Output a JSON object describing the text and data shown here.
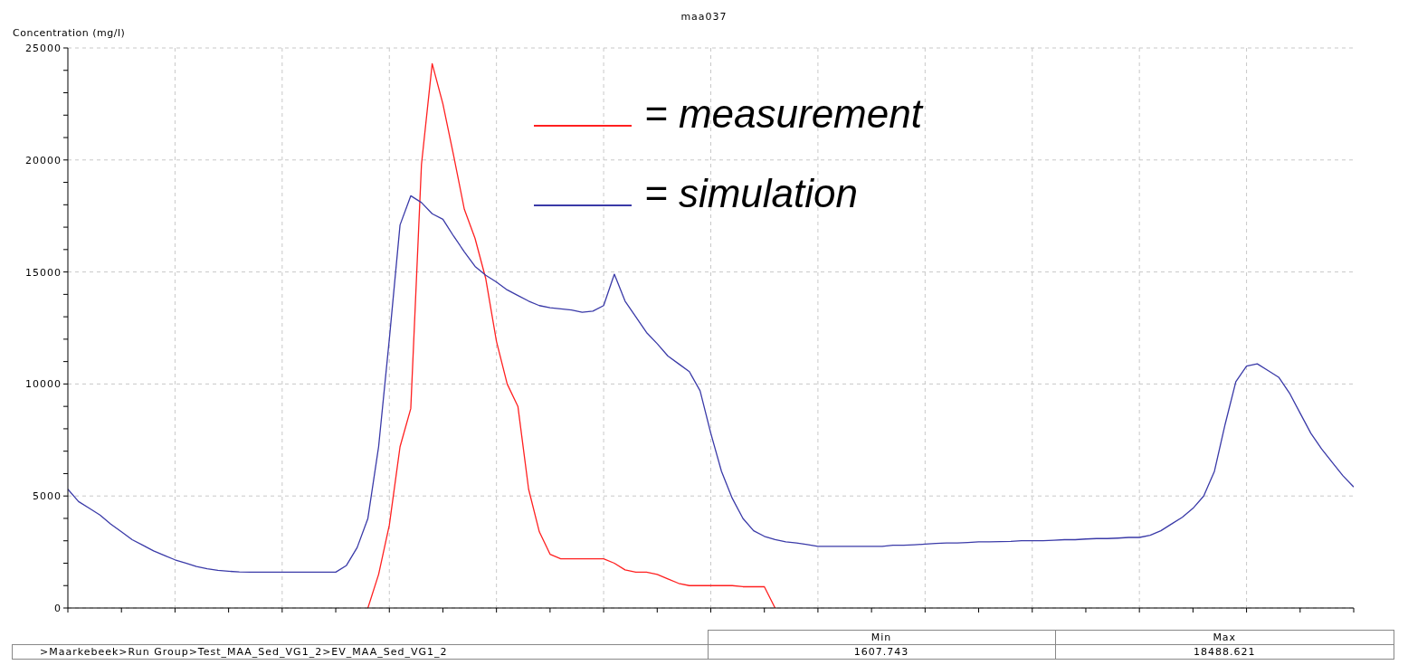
{
  "chart_data": {
    "type": "line",
    "title": "maa037",
    "ylabel": "Concentration (mg/l)",
    "categories": [
      null,
      null,
      null,
      null,
      null,
      null,
      null,
      null,
      null,
      null,
      null,
      null,
      null,
      null,
      null,
      null,
      null,
      null,
      null,
      null,
      null,
      null,
      null,
      null,
      null,
      null,
      null,
      null,
      null,
      null,
      null,
      null,
      null,
      null,
      null,
      null,
      null,
      null,
      null,
      null,
      null,
      null,
      null,
      null,
      null,
      null,
      null,
      null,
      null,
      null,
      null,
      null,
      null,
      null,
      null,
      null,
      null,
      null,
      null,
      null,
      null,
      null,
      null,
      null,
      null,
      null,
      null,
      null,
      null,
      null,
      null,
      null,
      null,
      null,
      null,
      null,
      null,
      null,
      null,
      null,
      null,
      null,
      null,
      null,
      null,
      null,
      null,
      null,
      null,
      null,
      null,
      null,
      null,
      null,
      null,
      null,
      null,
      null,
      null,
      null,
      null,
      null,
      null,
      null,
      null,
      null,
      null,
      null,
      null,
      null,
      null,
      null,
      null,
      null,
      null,
      null,
      null,
      null,
      null,
      null,
      null
    ],
    "series": [
      {
        "name": "= measurement",
        "color": "#ff2020",
        "values": [
          null,
          null,
          null,
          null,
          null,
          null,
          null,
          null,
          null,
          null,
          null,
          null,
          null,
          null,
          null,
          null,
          null,
          null,
          null,
          null,
          null,
          null,
          null,
          null,
          null,
          null,
          null,
          null,
          0,
          1500,
          3700,
          7200,
          8900,
          19800,
          24300,
          22500,
          20200,
          17800,
          16500,
          14700,
          11900,
          10000,
          9000,
          5300,
          3400,
          2400,
          2200,
          2200,
          2200,
          2200,
          2200,
          2000,
          1700,
          1600,
          1600,
          1500,
          1300,
          1100,
          1000,
          1000,
          1000,
          1000,
          1000,
          950,
          950,
          950,
          0,
          null,
          null,
          null,
          null,
          null,
          null,
          null,
          null,
          null,
          null,
          null,
          null,
          null,
          null,
          null,
          null,
          null,
          null,
          null,
          null,
          null,
          null,
          null,
          null,
          null,
          null,
          null,
          null,
          null,
          null,
          null,
          null,
          null,
          null,
          null,
          null,
          null,
          null,
          null,
          null,
          null,
          null,
          null,
          null,
          null,
          null,
          null,
          null,
          null,
          null,
          null,
          null,
          null,
          null
        ]
      },
      {
        "name": "= simulation",
        "color": "#3a3aa8",
        "values": [
          5300,
          4750,
          4450,
          4150,
          3750,
          3400,
          3050,
          2800,
          2550,
          2350,
          2150,
          2000,
          1850,
          1750,
          1680,
          1640,
          1610,
          1600,
          1600,
          1600,
          1600,
          1600,
          1600,
          1600,
          1600,
          1600,
          1900,
          2700,
          4000,
          7200,
          12000,
          17100,
          18400,
          18100,
          17600,
          17350,
          16600,
          15900,
          15250,
          14850,
          14550,
          14200,
          13950,
          13700,
          13500,
          13400,
          13350,
          13300,
          13200,
          13250,
          13500,
          14900,
          13700,
          13000,
          12300,
          11800,
          11250,
          10900,
          10550,
          9700,
          7800,
          6100,
          4900,
          4000,
          3450,
          3200,
          3050,
          2950,
          2900,
          2830,
          2750,
          2750,
          2750,
          2750,
          2750,
          2750,
          2750,
          2800,
          2800,
          2820,
          2850,
          2880,
          2900,
          2900,
          2920,
          2950,
          2950,
          2960,
          2970,
          3000,
          3000,
          3000,
          3020,
          3050,
          3050,
          3080,
          3100,
          3100,
          3120,
          3150,
          3150,
          3250,
          3450,
          3750,
          4050,
          4450,
          5000,
          6100,
          8200,
          10100,
          10800,
          10900,
          10600,
          10300,
          9600,
          8700,
          7800,
          7100,
          6500,
          5900,
          5400
        ]
      }
    ],
    "ylim": [
      0,
      25000
    ],
    "yticks": [
      0,
      {
        "value": 1000,
        "label": null
      },
      {
        "value": 2000,
        "label": null
      },
      {
        "value": 3000,
        "label": null
      },
      {
        "value": 4000,
        "label": null
      },
      5000,
      {
        "value": 6000,
        "label": null
      },
      {
        "value": 7000,
        "label": null
      },
      {
        "value": 8000,
        "label": null
      },
      {
        "value": 9000,
        "label": null
      },
      10000,
      {
        "value": 11000,
        "label": null
      },
      {
        "value": 12000,
        "label": null
      },
      {
        "value": 13000,
        "label": null
      },
      {
        "value": 14000,
        "label": null
      },
      15000,
      {
        "value": 16000,
        "label": null
      },
      {
        "value": 17000,
        "label": null
      },
      {
        "value": 18000,
        "label": null
      },
      {
        "value": 19000,
        "label": null
      },
      20000,
      {
        "value": 21000,
        "label": null
      },
      {
        "value": 22000,
        "label": null
      },
      {
        "value": 23000,
        "label": null
      },
      {
        "value": 24000,
        "label": null
      },
      25000
    ],
    "grid": true,
    "legend": "top right",
    "marker": "none",
    "line_style": "solid",
    "annotations": [
      ">Maarkebeek>Run Group>Test_MAA_Sed_VG1_2>EV_MAA_Sed_VG1_2",
      "Min",
      "1607.743",
      "Max",
      "18488.621"
    ]
  }
}
